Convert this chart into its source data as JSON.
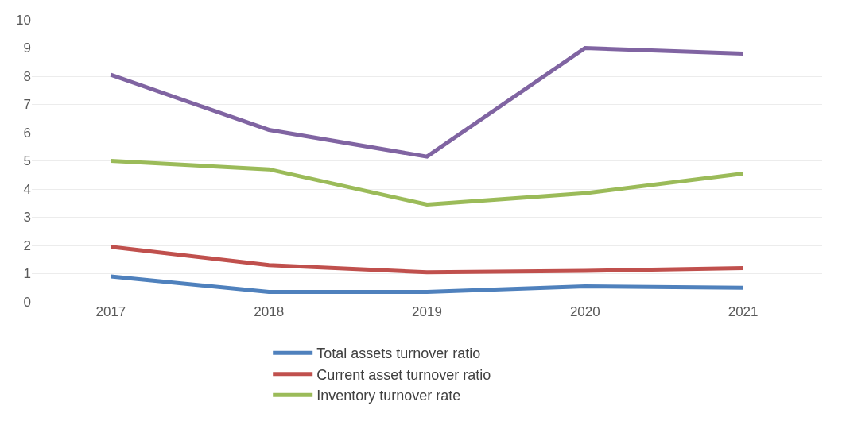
{
  "chart_data": {
    "type": "line",
    "categories": [
      "2017",
      "2018",
      "2019",
      "2020",
      "2021"
    ],
    "series": [
      {
        "name": "Total assets turnover ratio",
        "color": "#4f81bd",
        "values": [
          0.9,
          0.35,
          0.35,
          0.55,
          0.5
        ]
      },
      {
        "name": "Current asset turnover ratio",
        "color": "#c0504d",
        "values": [
          1.95,
          1.3,
          1.05,
          1.1,
          1.2
        ]
      },
      {
        "name": "Inventory turnover rate",
        "color": "#9bbb59",
        "values": [
          5.0,
          4.7,
          3.45,
          3.85,
          4.55
        ]
      },
      {
        "color": "#8064a2",
        "values": [
          8.05,
          6.1,
          5.15,
          9.0,
          8.8
        ]
      }
    ],
    "ylim": [
      0,
      10
    ],
    "yticks": [
      0,
      1,
      2,
      3,
      4,
      5,
      6,
      7,
      8,
      9,
      10
    ],
    "grid": "y",
    "legend": "bottom",
    "marker": "none",
    "line_style": "solid"
  }
}
